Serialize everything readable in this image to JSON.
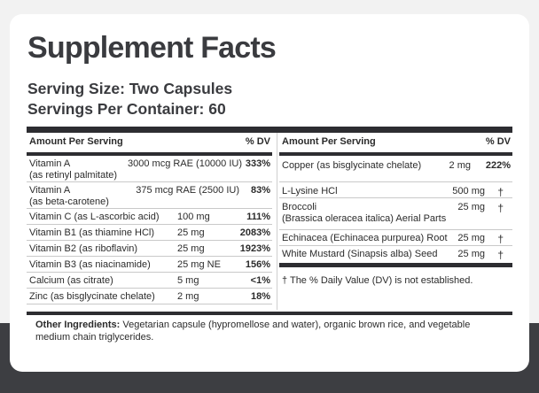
{
  "title": "Supplement Facts",
  "serving_size": "Serving Size: Two Capsules",
  "servings_per_container": "Servings Per Container: 60",
  "left_table": {
    "header": {
      "amount": "Amount Per Serving",
      "dv": "% DV"
    },
    "rows": [
      {
        "name": "Vitamin A",
        "name2": "(as retinyl palmitate)",
        "amount": "3000 mcg RAE (10000 IU)",
        "dv": "333%"
      },
      {
        "name": "Vitamin A",
        "name2": "(as beta-carotene)",
        "amount": "375 mcg RAE (2500 IU)",
        "dv": "83%"
      },
      {
        "name": "Vitamin C (as L-ascorbic acid)",
        "amount": "100 mg",
        "dv": "111%"
      },
      {
        "name": "Vitamin B1 (as thiamine HCl)",
        "amount": "25 mg",
        "dv": "2083%"
      },
      {
        "name": "Vitamin B2 (as riboflavin)",
        "amount": "25 mg",
        "dv": "1923%"
      },
      {
        "name": "Vitamin B3 (as niacinamide)",
        "amount": "25 mg NE",
        "dv": "156%"
      },
      {
        "name": "Calcium (as citrate)",
        "amount": "5 mg",
        "dv": "<1%"
      },
      {
        "name": "Zinc (as bisglycinate chelate)",
        "amount": "2 mg",
        "dv": "18%"
      }
    ]
  },
  "right_table": {
    "header": {
      "amount": "Amount Per Serving",
      "dv": "% DV"
    },
    "rows": [
      {
        "name": "Copper (as bisglycinate chelate)",
        "amount": "2 mg",
        "dv": "222%"
      },
      {
        "name": "L-Lysine HCl",
        "amount": "500 mg",
        "dv": "†"
      },
      {
        "name": "Broccoli",
        "name2": "(Brassica oleracea italica) Aerial Parts",
        "amount": "25 mg",
        "dv": "†"
      },
      {
        "name": "Echinacea (Echinacea purpurea) Root",
        "amount": "25 mg",
        "dv": "†"
      },
      {
        "name": "White Mustard (Sinapsis alba) Seed",
        "amount": "25 mg",
        "dv": "†"
      }
    ],
    "footnote": "† The % Daily Value (DV) is not established."
  },
  "other_ingredients": {
    "label": "Other Ingredients:",
    "text": " Vegetarian capsule (hypromellose and water), organic brown rice, and vegetable medium chain triglycerides."
  },
  "colors": {
    "band": "#3d3e42",
    "rule": "#2d2d31",
    "card": "#ffffff"
  }
}
